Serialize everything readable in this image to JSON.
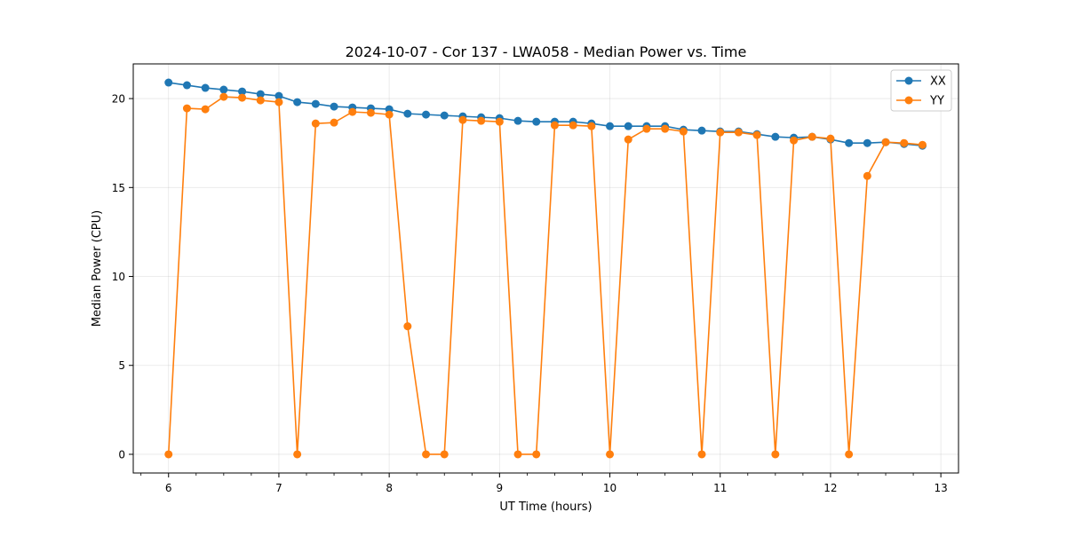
{
  "chart_data": {
    "type": "line",
    "title": "2024-10-07 - Cor 137 - LWA058 - Median Power vs. Time",
    "xlabel": "UT Time (hours)",
    "ylabel": "Median Power (CPU)",
    "xlim": [
      5.68,
      13.16
    ],
    "ylim": [
      -1.05,
      21.95
    ],
    "xticks": [
      6,
      7,
      8,
      9,
      10,
      11,
      12,
      13
    ],
    "xtick_labels": [
      "6",
      "7",
      "8",
      "9",
      "10",
      "11",
      "12",
      "13"
    ],
    "yticks": [
      0,
      5,
      10,
      15,
      20
    ],
    "ytick_labels": [
      "0",
      "5",
      "10",
      "15",
      "20"
    ],
    "minor_x_step": 0.25,
    "grid": true,
    "legend_position": "top-right",
    "x": [
      6.0,
      6.1667,
      6.3333,
      6.5,
      6.6667,
      6.8333,
      7.0,
      7.1667,
      7.3333,
      7.5,
      7.6667,
      7.8333,
      8.0,
      8.1667,
      8.3333,
      8.5,
      8.6667,
      8.8333,
      9.0,
      9.1667,
      9.3333,
      9.5,
      9.6667,
      9.8333,
      10.0,
      10.1667,
      10.3333,
      10.5,
      10.6667,
      10.8333,
      11.0,
      11.1667,
      11.3333,
      11.5,
      11.6667,
      11.8333,
      12.0,
      12.1667,
      12.3333,
      12.5,
      12.6667,
      12.8333
    ],
    "series": [
      {
        "name": "XX",
        "color": "#1f77b4",
        "values": [
          20.9,
          20.75,
          20.6,
          20.5,
          20.4,
          20.25,
          20.15,
          19.8,
          19.7,
          19.55,
          19.5,
          19.45,
          19.4,
          19.15,
          19.1,
          19.05,
          19.0,
          18.95,
          18.9,
          18.75,
          18.7,
          18.7,
          18.7,
          18.6,
          18.45,
          18.45,
          18.45,
          18.45,
          18.25,
          18.2,
          18.15,
          18.15,
          18.0,
          17.85,
          17.8,
          17.85,
          17.7,
          17.5,
          17.5,
          17.55,
          17.45,
          17.35
        ]
      },
      {
        "name": "YY",
        "color": "#ff7f0e",
        "values": [
          0.0,
          19.45,
          19.4,
          20.1,
          20.05,
          19.9,
          19.8,
          0.0,
          18.6,
          18.65,
          19.25,
          19.2,
          19.1,
          7.2,
          0.0,
          0.0,
          18.8,
          18.75,
          18.7,
          0.0,
          0.0,
          18.5,
          18.5,
          18.45,
          0.0,
          17.7,
          18.3,
          18.3,
          18.15,
          0.0,
          18.1,
          18.1,
          17.95,
          0.0,
          17.65,
          17.85,
          17.75,
          0.0,
          15.65,
          17.55,
          17.5,
          17.4
        ]
      }
    ]
  }
}
